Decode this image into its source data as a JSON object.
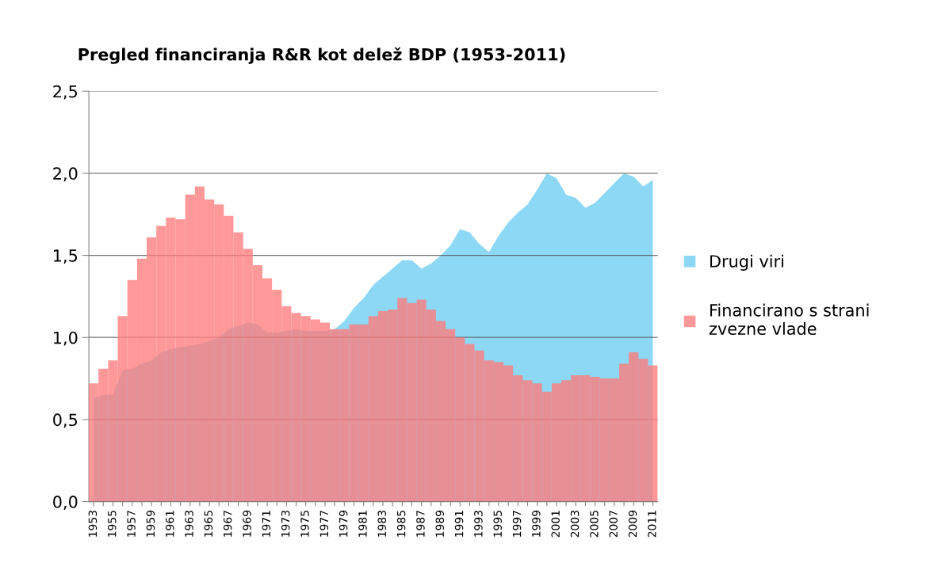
{
  "chart_data": {
    "type": "bar",
    "title": "Pregled financiranja R&R kot delež BDP (1953-2011)",
    "categories": [
      "1953",
      null,
      "1955",
      null,
      "1957",
      null,
      "1959",
      null,
      "1961",
      null,
      "1963",
      null,
      "1965",
      null,
      "1967",
      null,
      "1969",
      null,
      "1971",
      null,
      "1973",
      null,
      "1975",
      null,
      "1977",
      null,
      "1979",
      null,
      "1981",
      null,
      "1983",
      null,
      "1985",
      null,
      "1987",
      null,
      "1989",
      null,
      "1991",
      null,
      "1993",
      null,
      "1995",
      null,
      "1997",
      null,
      "1999",
      null,
      "2001",
      null,
      "2003",
      null,
      "2005",
      null,
      "2007",
      null,
      "2009",
      null,
      "2011"
    ],
    "series": [
      {
        "name": "Drugi viri",
        "type": "area",
        "color": "#8dd8f4",
        "values": [
          0.63,
          0.65,
          0.65,
          0.8,
          0.81,
          0.84,
          0.86,
          0.91,
          0.93,
          0.94,
          0.95,
          0.96,
          0.98,
          1.0,
          1.05,
          1.07,
          1.09,
          1.08,
          1.03,
          1.03,
          1.04,
          1.05,
          1.04,
          1.04,
          1.04,
          1.05,
          1.1,
          1.18,
          1.24,
          1.32,
          1.37,
          1.42,
          1.47,
          1.47,
          1.42,
          1.45,
          1.5,
          1.56,
          1.66,
          1.64,
          1.57,
          1.52,
          1.62,
          1.7,
          1.76,
          1.81,
          1.9,
          2.0,
          1.97,
          1.87,
          1.85,
          1.79,
          1.82,
          1.88,
          1.94,
          2.0,
          1.98,
          1.92,
          1.96
        ]
      },
      {
        "name": "Financirano s strani zvezne vlade",
        "color": "#ff7b7b",
        "values": [
          0.72,
          0.81,
          0.86,
          1.13,
          1.35,
          1.48,
          1.61,
          1.68,
          1.73,
          1.72,
          1.87,
          1.92,
          1.84,
          1.81,
          1.74,
          1.64,
          1.54,
          1.44,
          1.36,
          1.29,
          1.19,
          1.15,
          1.13,
          1.11,
          1.09,
          1.05,
          1.05,
          1.08,
          1.08,
          1.13,
          1.16,
          1.17,
          1.24,
          1.21,
          1.23,
          1.17,
          1.1,
          1.05,
          1.0,
          0.96,
          0.92,
          0.86,
          0.85,
          0.83,
          0.77,
          0.74,
          0.72,
          0.67,
          0.72,
          0.74,
          0.77,
          0.77,
          0.76,
          0.75,
          0.75,
          0.84,
          0.91,
          0.87,
          0.83
        ]
      }
    ],
    "ylim": [
      0,
      2.5
    ],
    "yticks": [
      {
        "value": 0,
        "label": "0,0"
      },
      {
        "value": 0.5,
        "label": "0,5"
      },
      {
        "value": 1.0,
        "label": "1,0"
      },
      {
        "value": 1.5,
        "label": "1,5"
      },
      {
        "value": 2.0,
        "label": "2,0"
      },
      {
        "value": 2.5,
        "label": "2,5"
      }
    ],
    "grid": "y",
    "legend": "right"
  }
}
